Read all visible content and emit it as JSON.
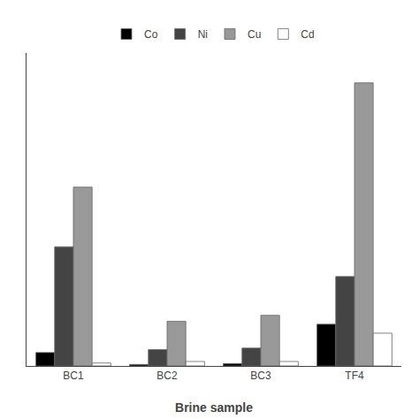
{
  "chart_data": {
    "type": "bar",
    "xlabel": "Brine sample",
    "categories": [
      "BC1",
      "BC2",
      "BC3",
      "TF4"
    ],
    "series": [
      {
        "name": "Co",
        "color": "#000000",
        "values": [
          4.5,
          0.5,
          0.8,
          14.0
        ]
      },
      {
        "name": "Ni",
        "color": "#444444",
        "values": [
          40.0,
          5.5,
          6.0,
          30.0
        ]
      },
      {
        "name": "Cu",
        "color": "#999999",
        "values": [
          60.0,
          15.0,
          17.0,
          95.0
        ]
      },
      {
        "name": "Cd",
        "color": "#ffffff",
        "values": [
          1.0,
          1.5,
          1.5,
          11.0
        ]
      }
    ],
    "ylim": [
      0,
      105
    ],
    "grid": false,
    "legend": "top",
    "tick_labels": "x"
  }
}
